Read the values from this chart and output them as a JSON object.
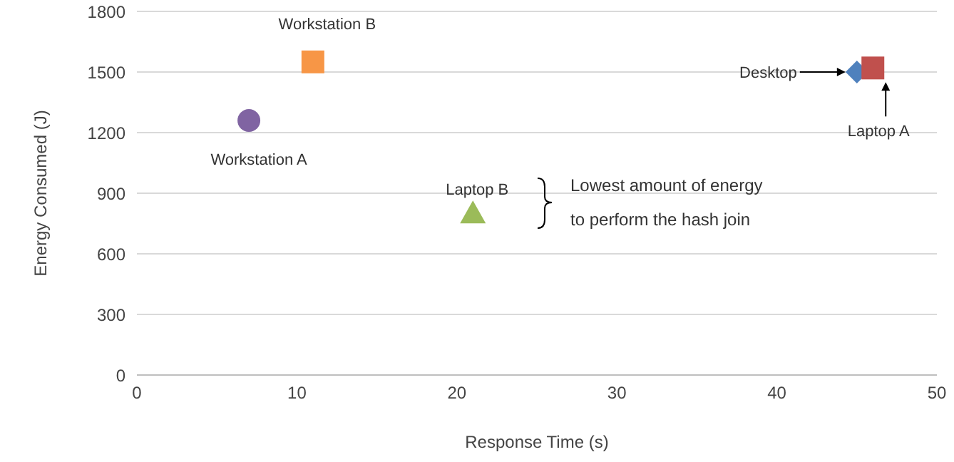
{
  "chart_data": {
    "type": "scatter",
    "xlabel": "Response Time (s)",
    "ylabel": "Energy Consumed (J)",
    "xlim": [
      0,
      50
    ],
    "xticks": [
      0,
      10,
      20,
      30,
      40,
      50
    ],
    "ylim": [
      0,
      1800
    ],
    "yticks": [
      0,
      300,
      600,
      900,
      1200,
      1500,
      1800
    ],
    "grid": "y",
    "legend": false,
    "series": [
      {
        "name": "Workstation A",
        "color": "#8064a2",
        "marker": "circle",
        "x": [
          7
        ],
        "values": [
          1260
        ]
      },
      {
        "name": "Workstation B",
        "color": "#f79646",
        "marker": "square",
        "x": [
          11
        ],
        "values": [
          1550
        ]
      },
      {
        "name": "Laptop B",
        "color": "#9bbb59",
        "marker": "triangle",
        "x": [
          21
        ],
        "values": [
          800
        ]
      },
      {
        "name": "Desktop",
        "color": "#4f81bd",
        "marker": "diamond",
        "x": [
          45
        ],
        "values": [
          1500
        ]
      },
      {
        "name": "Laptop A",
        "color": "#c0504d",
        "marker": "square",
        "x": [
          46
        ],
        "values": [
          1520
        ]
      }
    ],
    "annotations": [
      "Lowest amount of energy to perform the hash join"
    ]
  }
}
